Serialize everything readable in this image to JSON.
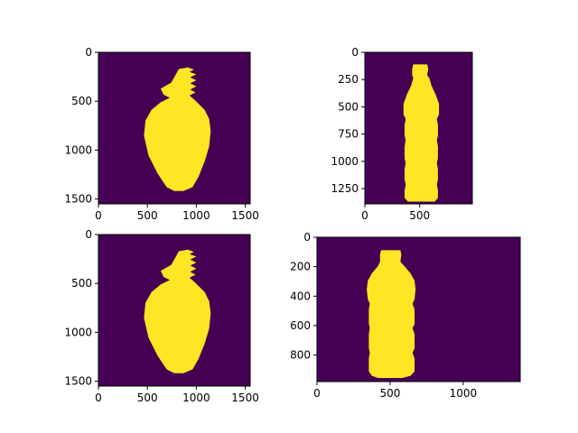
{
  "colors": {
    "background_mask": "#440154",
    "foreground_mask": "#fde725",
    "axes": "#000000"
  },
  "chart_data": [
    {
      "type": "heatmap",
      "content": "binary segmentation mask (bottle shape)",
      "colormap": "viridis",
      "x_range": [
        0,
        1550
      ],
      "y_range": [
        1550,
        0
      ],
      "x_ticks": [
        "0",
        "500",
        "1000",
        "1500"
      ],
      "y_ticks": [
        "0",
        "500",
        "1000",
        "1500"
      ]
    },
    {
      "type": "heatmap",
      "content": "binary segmentation mask (bottle shape)",
      "colormap": "viridis",
      "x_range": [
        0,
        980
      ],
      "y_range": [
        1390,
        0
      ],
      "x_ticks": [
        "0",
        "500"
      ],
      "y_ticks": [
        "0",
        "250",
        "500",
        "750",
        "1000",
        "1250"
      ]
    },
    {
      "type": "heatmap",
      "content": "binary segmentation mask (bottle shape)",
      "colormap": "viridis",
      "x_range": [
        0,
        1550
      ],
      "y_range": [
        1550,
        0
      ],
      "x_ticks": [
        "0",
        "500",
        "1000",
        "1500"
      ],
      "y_ticks": [
        "0",
        "500",
        "1000",
        "1500"
      ]
    },
    {
      "type": "heatmap",
      "content": "binary segmentation mask (bottle shape)",
      "colormap": "viridis",
      "x_range": [
        0,
        1390
      ],
      "y_range": [
        980,
        0
      ],
      "x_ticks": [
        "0",
        "500",
        "1000"
      ],
      "y_ticks": [
        "0",
        "200",
        "400",
        "600",
        "800"
      ]
    }
  ]
}
